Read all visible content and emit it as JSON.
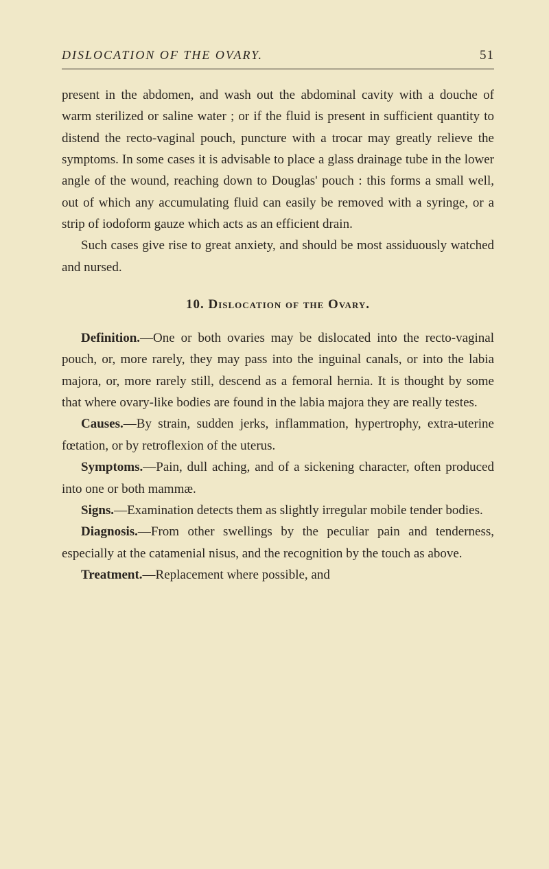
{
  "header": {
    "title": "DISLOCATION OF THE OVARY.",
    "pageNumber": "51"
  },
  "paragraphs": {
    "p1": "present in the abdomen, and wash out the abdominal cavity with a douche of warm sterilized or saline water ; or if the fluid is present in sufficient quantity to distend the recto-vaginal pouch, puncture with a trocar may greatly relieve the symptoms. In some cases it is advisable to place a glass drainage tube in the lower angle of the wound, reaching down to Douglas' pouch : this forms a small well, out of which any accumulating fluid can easily be removed with a syringe, or a strip of iodoform gauze which acts as an efficient drain.",
    "p2": "Such cases give rise to great anxiety, and should be most assiduously watched and nursed."
  },
  "sectionHeading": "10. Dislocation of the Ovary.",
  "definitions": {
    "definition": {
      "label": "Definition.",
      "text": "—One or both ovaries may be dislocated into the recto-vaginal pouch, or, more rarely, they may pass into the inguinal canals, or into the labia majora, or, more rarely still, descend as a femoral hernia. It is thought by some that where ovary-like bodies are found in the labia majora they are really testes."
    },
    "causes": {
      "label": "Causes.",
      "text": "—By strain, sudden jerks, inflammation, hypertrophy, extra-uterine fœtation, or by retroflexion of the uterus."
    },
    "symptoms": {
      "label": "Symptoms.",
      "text": "—Pain, dull aching, and of a sickening character, often produced into one or both mammæ."
    },
    "signs": {
      "label": "Signs.",
      "text": "—Examination detects them as slightly irregular mobile tender bodies."
    },
    "diagnosis": {
      "label": "Diagnosis.",
      "text": "—From other swellings by the peculiar pain and tenderness, especially at the catamenial nisus, and the recognition by the touch as above."
    },
    "treatment": {
      "label": "Treatment.",
      "text": "—Replacement where possible, and"
    }
  }
}
